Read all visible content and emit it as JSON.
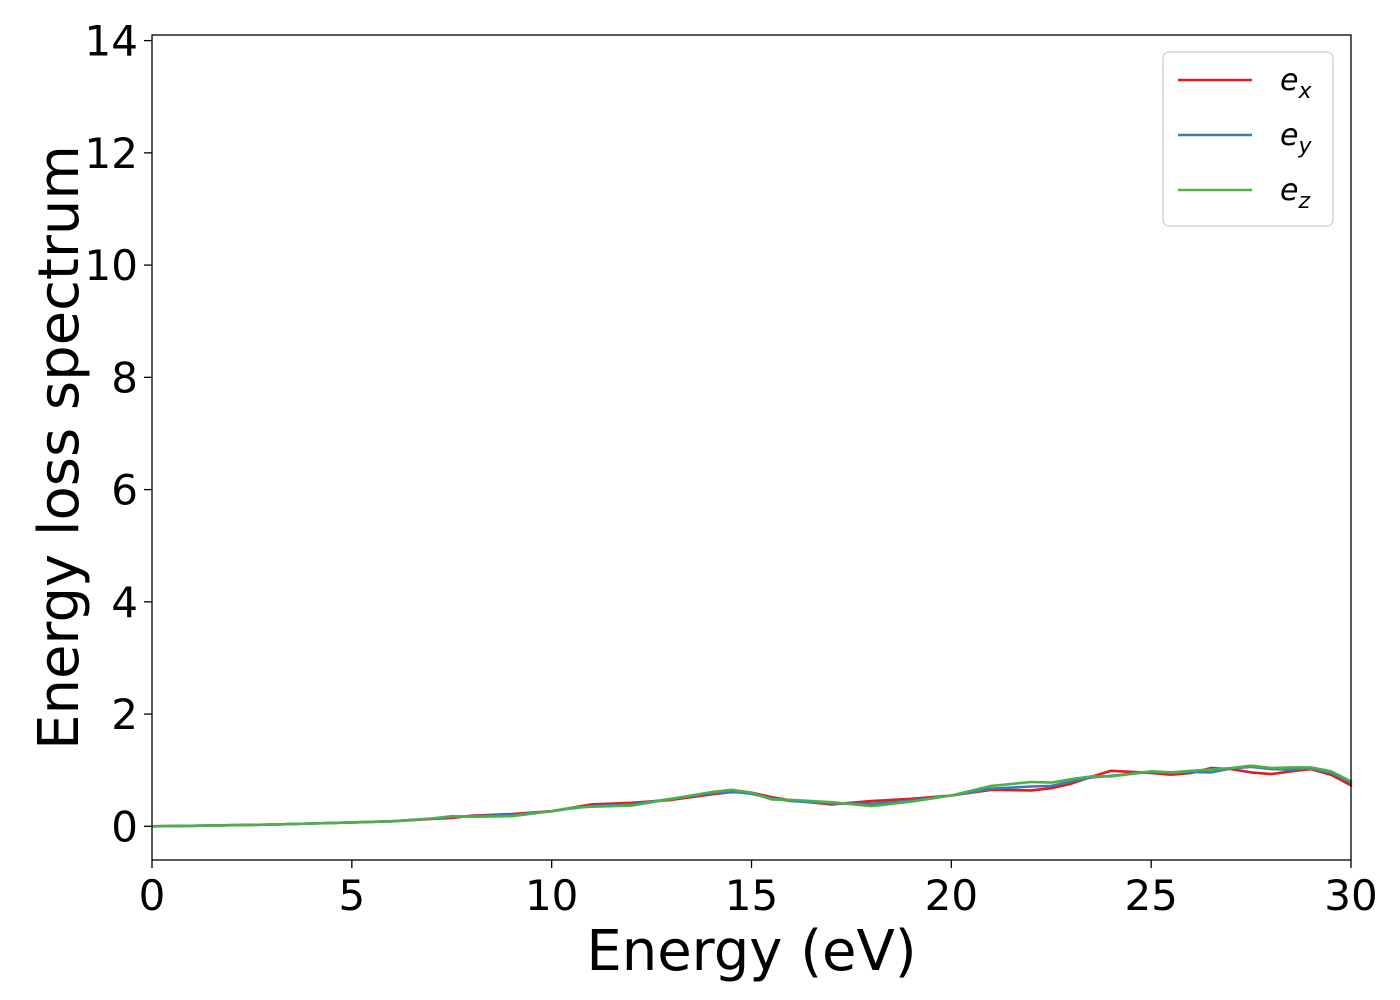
{
  "chart_data": {
    "type": "line",
    "title": "",
    "xlabel": "Energy (eV)",
    "ylabel": "Energy loss spectrum",
    "xlim": [
      0,
      30
    ],
    "ylim": [
      -0.6,
      14.1
    ],
    "xticks": [
      0,
      5,
      10,
      15,
      20,
      25,
      30
    ],
    "yticks": [
      0,
      2,
      4,
      6,
      8,
      10,
      12,
      14
    ],
    "grid": false,
    "legend_position": "top-right",
    "series": [
      {
        "name": "e_x",
        "legend_main": "e",
        "legend_sub": "x",
        "color": "#e41a1c",
        "x": [
          0,
          1,
          2,
          3,
          4,
          5,
          6,
          7,
          7.5,
          8,
          9,
          10,
          10.5,
          11,
          12,
          13,
          14,
          14.5,
          15,
          15.5,
          16,
          17,
          18,
          19,
          20,
          21,
          22,
          22.5,
          23,
          23.5,
          24,
          25,
          25.5,
          26,
          26.5,
          27,
          27.5,
          28,
          28.5,
          29,
          29.5,
          30
        ],
        "y": [
          0,
          0.01,
          0.02,
          0.03,
          0.05,
          0.07,
          0.09,
          0.13,
          0.15,
          0.19,
          0.22,
          0.27,
          0.33,
          0.39,
          0.42,
          0.47,
          0.57,
          0.61,
          0.6,
          0.52,
          0.46,
          0.39,
          0.45,
          0.49,
          0.55,
          0.65,
          0.64,
          0.68,
          0.76,
          0.88,
          0.99,
          0.95,
          0.92,
          0.95,
          1.04,
          1.02,
          0.96,
          0.93,
          0.98,
          1.02,
          0.92,
          0.73
        ]
      },
      {
        "name": "e_y",
        "legend_main": "e",
        "legend_sub": "y",
        "color": "#377eb8",
        "x": [
          0,
          1,
          2,
          3,
          4,
          5,
          6,
          7,
          7.5,
          8,
          9,
          10,
          10.5,
          11,
          12,
          13,
          14,
          14.5,
          15,
          15.5,
          16,
          17,
          18,
          19,
          20,
          21,
          22,
          22.5,
          23,
          23.5,
          24,
          25,
          25.5,
          26,
          26.5,
          27,
          27.5,
          28,
          28.5,
          29,
          29.5,
          30
        ],
        "y": [
          0,
          0.01,
          0.02,
          0.03,
          0.05,
          0.07,
          0.09,
          0.14,
          0.17,
          0.18,
          0.2,
          0.27,
          0.32,
          0.36,
          0.39,
          0.49,
          0.59,
          0.62,
          0.58,
          0.5,
          0.45,
          0.41,
          0.4,
          0.46,
          0.55,
          0.67,
          0.71,
          0.72,
          0.8,
          0.87,
          0.9,
          0.97,
          0.95,
          0.97,
          0.96,
          1.03,
          1.06,
          1.02,
          1.01,
          1.03,
          0.95,
          0.78
        ]
      },
      {
        "name": "e_z",
        "legend_main": "e",
        "legend_sub": "z",
        "color": "#4daf4a",
        "x": [
          0,
          1,
          2,
          3,
          4,
          5,
          6,
          7,
          7.5,
          8,
          9,
          10,
          10.5,
          11,
          12,
          13,
          14,
          14.5,
          15,
          15.5,
          16,
          17,
          18,
          19,
          20,
          21,
          22,
          22.5,
          23,
          23.5,
          24,
          25,
          25.5,
          26,
          26.5,
          27,
          27.5,
          28,
          28.5,
          29,
          29.5,
          30
        ],
        "y": [
          0,
          0.01,
          0.02,
          0.03,
          0.05,
          0.07,
          0.09,
          0.14,
          0.18,
          0.17,
          0.18,
          0.27,
          0.33,
          0.35,
          0.37,
          0.49,
          0.61,
          0.65,
          0.6,
          0.48,
          0.47,
          0.43,
          0.36,
          0.44,
          0.55,
          0.72,
          0.79,
          0.78,
          0.84,
          0.89,
          0.89,
          0.98,
          0.96,
          0.99,
          1.01,
          1.04,
          1.08,
          1.04,
          1.05,
          1.05,
          0.98,
          0.8
        ]
      }
    ]
  }
}
